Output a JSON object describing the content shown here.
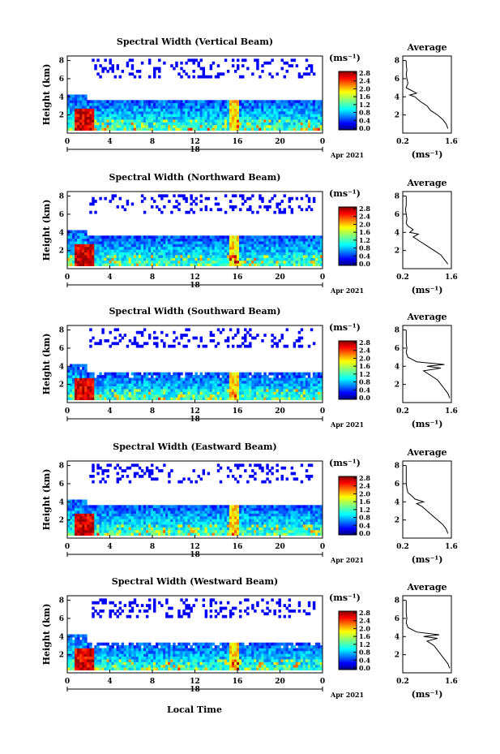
{
  "figure": {
    "local_time_label": "Local Time"
  },
  "chart_data": [
    {
      "type": "heatmap",
      "title": "Spectral Width (Vertical Beam)",
      "ylabel": "Height (km)",
      "xticks": [
        "0",
        "4",
        "8",
        "12",
        "16",
        "20",
        "0"
      ],
      "ytick_labels": [
        "2",
        "4",
        "6",
        "8"
      ],
      "date_day": "18",
      "date_month_year": "Apr 2021",
      "colorbar_unit": "(ms⁻¹)",
      "colorbar_ticks": [
        "0.0",
        "0.4",
        "0.8",
        "1.2",
        "1.6",
        "2.0",
        "2.4",
        "2.8"
      ],
      "average": {
        "title": "Average",
        "xlabel": "(ms⁻¹)",
        "xtick_labels": [
          "0.2",
          "1.6"
        ],
        "ytick_labels": [
          "2",
          "4",
          "6",
          "8"
        ],
        "x": [
          1.5,
          1.45,
          1.35,
          1.2,
          1.0,
          0.9,
          0.7,
          0.55,
          0.4,
          0.6,
          0.45,
          0.3,
          0.35,
          0.32,
          0.3,
          0.32,
          0.3,
          0.3
        ],
        "y": [
          0.5,
          1.0,
          1.5,
          2.0,
          2.5,
          3.0,
          3.5,
          4.0,
          4.2,
          4.4,
          4.7,
          5.0,
          5.5,
          6.0,
          6.5,
          7.0,
          7.5,
          8.0
        ]
      },
      "vertical_range_km": [
        0,
        8.5
      ]
    },
    {
      "type": "heatmap",
      "title": "Spectral Width (Northward Beam)",
      "ylabel": "Height (km)",
      "xticks": [
        "0",
        "4",
        "8",
        "12",
        "16",
        "20",
        "0"
      ],
      "ytick_labels": [
        "2",
        "4",
        "6",
        "8"
      ],
      "date_day": "18",
      "date_month_year": "Apr 2021",
      "colorbar_unit": "(ms⁻¹)",
      "colorbar_ticks": [
        "0.0",
        "0.4",
        "0.8",
        "1.2",
        "1.6",
        "2.0",
        "2.4",
        "2.8"
      ],
      "average": {
        "title": "Average",
        "xlabel": "(ms⁻¹)",
        "xtick_labels": [
          "0.2",
          "1.6"
        ],
        "ytick_labels": [
          "2",
          "4",
          "6",
          "8"
        ],
        "x": [
          1.5,
          1.4,
          1.3,
          1.1,
          0.9,
          0.7,
          0.5,
          0.65,
          0.4,
          0.5,
          0.35,
          0.3,
          0.32,
          0.3,
          0.28,
          0.3,
          0.3,
          0.3
        ],
        "y": [
          0.5,
          1.0,
          1.5,
          2.0,
          2.5,
          3.0,
          3.5,
          3.8,
          4.0,
          4.3,
          4.7,
          5.0,
          5.5,
          6.0,
          6.5,
          7.0,
          7.5,
          8.0
        ]
      },
      "vertical_range_km": [
        0,
        8.5
      ]
    },
    {
      "type": "heatmap",
      "title": "Spectral Width (Southward Beam)",
      "ylabel": "Height (km)",
      "xticks": [
        "0",
        "4",
        "8",
        "12",
        "16",
        "20",
        "0"
      ],
      "ytick_labels": [
        "2",
        "4",
        "6",
        "8"
      ],
      "date_day": "18",
      "date_month_year": "Apr 2021",
      "colorbar_unit": "(ms⁻¹)",
      "colorbar_ticks": [
        "0.0",
        "0.4",
        "0.8",
        "1.2",
        "1.6",
        "2.0",
        "2.4",
        "2.8"
      ],
      "average": {
        "title": "Average",
        "xlabel": "(ms⁻¹)",
        "xtick_labels": [
          "0.2",
          "1.6"
        ],
        "ytick_labels": [
          "2",
          "4",
          "6",
          "8"
        ],
        "x": [
          1.55,
          1.5,
          1.4,
          1.3,
          1.2,
          1.0,
          0.8,
          1.3,
          0.9,
          1.4,
          0.6,
          0.35,
          0.3,
          0.32,
          0.3,
          0.3,
          0.3,
          0.3
        ],
        "y": [
          0.5,
          1.0,
          1.5,
          2.0,
          2.5,
          3.0,
          3.5,
          3.8,
          4.0,
          4.2,
          4.5,
          5.0,
          5.5,
          6.0,
          6.5,
          7.0,
          7.5,
          8.0
        ]
      },
      "vertical_range_km": [
        0,
        8.5
      ]
    },
    {
      "type": "heatmap",
      "title": "Spectral Width (Eastward Beam)",
      "ylabel": "Height (km)",
      "xticks": [
        "0",
        "4",
        "8",
        "12",
        "16",
        "20",
        "0"
      ],
      "ytick_labels": [
        "2",
        "4",
        "6",
        "8"
      ],
      "date_day": "18",
      "date_month_year": "Apr 2021",
      "colorbar_unit": "(ms⁻¹)",
      "colorbar_ticks": [
        "0.0",
        "0.4",
        "0.8",
        "1.2",
        "1.6",
        "2.0",
        "2.4",
        "2.8"
      ],
      "average": {
        "title": "Average",
        "xlabel": "(ms⁻¹)",
        "xtick_labels": [
          "0.2",
          "1.6"
        ],
        "ytick_labels": [
          "2",
          "4",
          "6",
          "8"
        ],
        "x": [
          1.5,
          1.45,
          1.35,
          1.2,
          1.05,
          0.9,
          0.75,
          0.6,
          0.8,
          0.55,
          0.45,
          0.35,
          0.32,
          0.3,
          0.3,
          0.3,
          0.3,
          0.3
        ],
        "y": [
          0.5,
          1.0,
          1.5,
          2.0,
          2.5,
          3.0,
          3.5,
          3.8,
          4.0,
          4.3,
          4.7,
          5.0,
          5.5,
          6.0,
          6.5,
          7.0,
          7.5,
          8.0
        ]
      },
      "vertical_range_km": [
        0,
        8.5
      ]
    },
    {
      "type": "heatmap",
      "title": "Spectral Width (Westward Beam)",
      "ylabel": "Height (km)",
      "xticks": [
        "0",
        "4",
        "8",
        "12",
        "16",
        "20",
        "0"
      ],
      "ytick_labels": [
        "2",
        "4",
        "6",
        "8"
      ],
      "date_day": "18",
      "date_month_year": "Apr 2021",
      "colorbar_unit": "(ms⁻¹)",
      "colorbar_ticks": [
        "0.0",
        "0.4",
        "0.8",
        "1.2",
        "1.6",
        "2.0",
        "2.4",
        "2.8"
      ],
      "average": {
        "title": "Average",
        "xlabel": "(ms⁻¹)",
        "xtick_labels": [
          "0.2",
          "1.6"
        ],
        "ytick_labels": [
          "2",
          "4",
          "6",
          "8"
        ],
        "x": [
          1.55,
          1.5,
          1.4,
          1.3,
          1.2,
          1.1,
          0.9,
          1.2,
          0.8,
          1.25,
          0.6,
          0.35,
          0.3,
          0.32,
          0.3,
          0.3,
          0.3,
          0.3
        ],
        "y": [
          0.5,
          1.0,
          1.5,
          2.0,
          2.5,
          3.0,
          3.5,
          3.8,
          4.0,
          4.2,
          4.5,
          5.0,
          5.5,
          6.0,
          6.5,
          7.0,
          7.5,
          8.0
        ]
      },
      "vertical_range_km": [
        0,
        8.5
      ]
    }
  ]
}
